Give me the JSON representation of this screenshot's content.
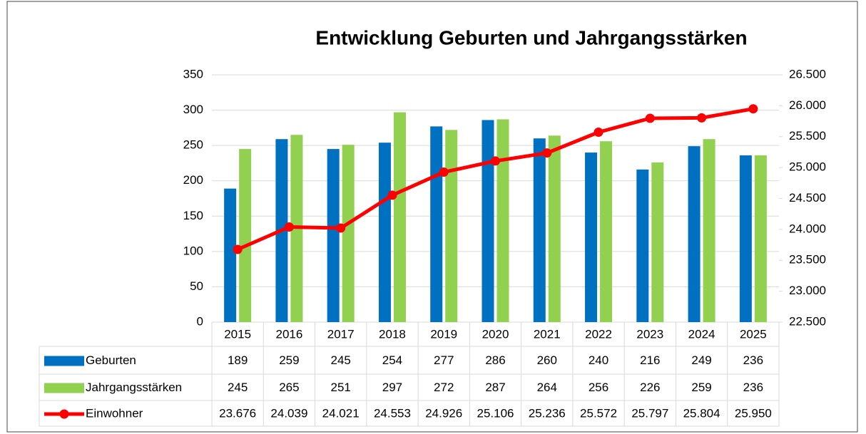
{
  "chart_data": {
    "type": "bar",
    "title": "Entwicklung Geburten und Jahrgangsstärken",
    "categories": [
      "2015",
      "2016",
      "2017",
      "2018",
      "2019",
      "2020",
      "2021",
      "2022",
      "2023",
      "2024",
      "2025"
    ],
    "series": [
      {
        "name": "Geburten",
        "color": "#0070c0",
        "values": [
          189,
          259,
          245,
          254,
          277,
          286,
          260,
          240,
          216,
          249,
          236
        ]
      },
      {
        "name": "Jahrgangsstärken",
        "color": "#92d050",
        "values": [
          245,
          265,
          251,
          297,
          272,
          287,
          264,
          256,
          226,
          259,
          236
        ]
      },
      {
        "name": "Einwohner",
        "color": "#ff0000",
        "type": "line",
        "axis": "y2",
        "values": [
          23676,
          24039,
          24021,
          24553,
          24926,
          25106,
          25236,
          25572,
          25797,
          25804,
          25950
        ],
        "value_labels": [
          "23.676",
          "24.039",
          "24.021",
          "24.553",
          "24.926",
          "25.106",
          "25.236",
          "25.572",
          "25.797",
          "25.804",
          "25.950"
        ]
      }
    ],
    "ylim": [
      0,
      350
    ],
    "yticks": [
      0,
      50,
      100,
      150,
      200,
      250,
      300,
      350
    ],
    "y2lim": [
      22500,
      26500
    ],
    "y2ticks": [
      {
        "value": 22500,
        "label": "22.500"
      },
      {
        "value": 23000,
        "label": "23.000"
      },
      {
        "value": 23500,
        "label": "23.500"
      },
      {
        "value": 24000,
        "label": "24.000"
      },
      {
        "value": 24500,
        "label": "24.500"
      },
      {
        "value": 25000,
        "label": "25.000"
      },
      {
        "value": 25500,
        "label": "25.500"
      },
      {
        "value": 26000,
        "label": "26.000"
      },
      {
        "value": 26500,
        "label": "26.500"
      }
    ],
    "grid": true,
    "data_table": true
  }
}
